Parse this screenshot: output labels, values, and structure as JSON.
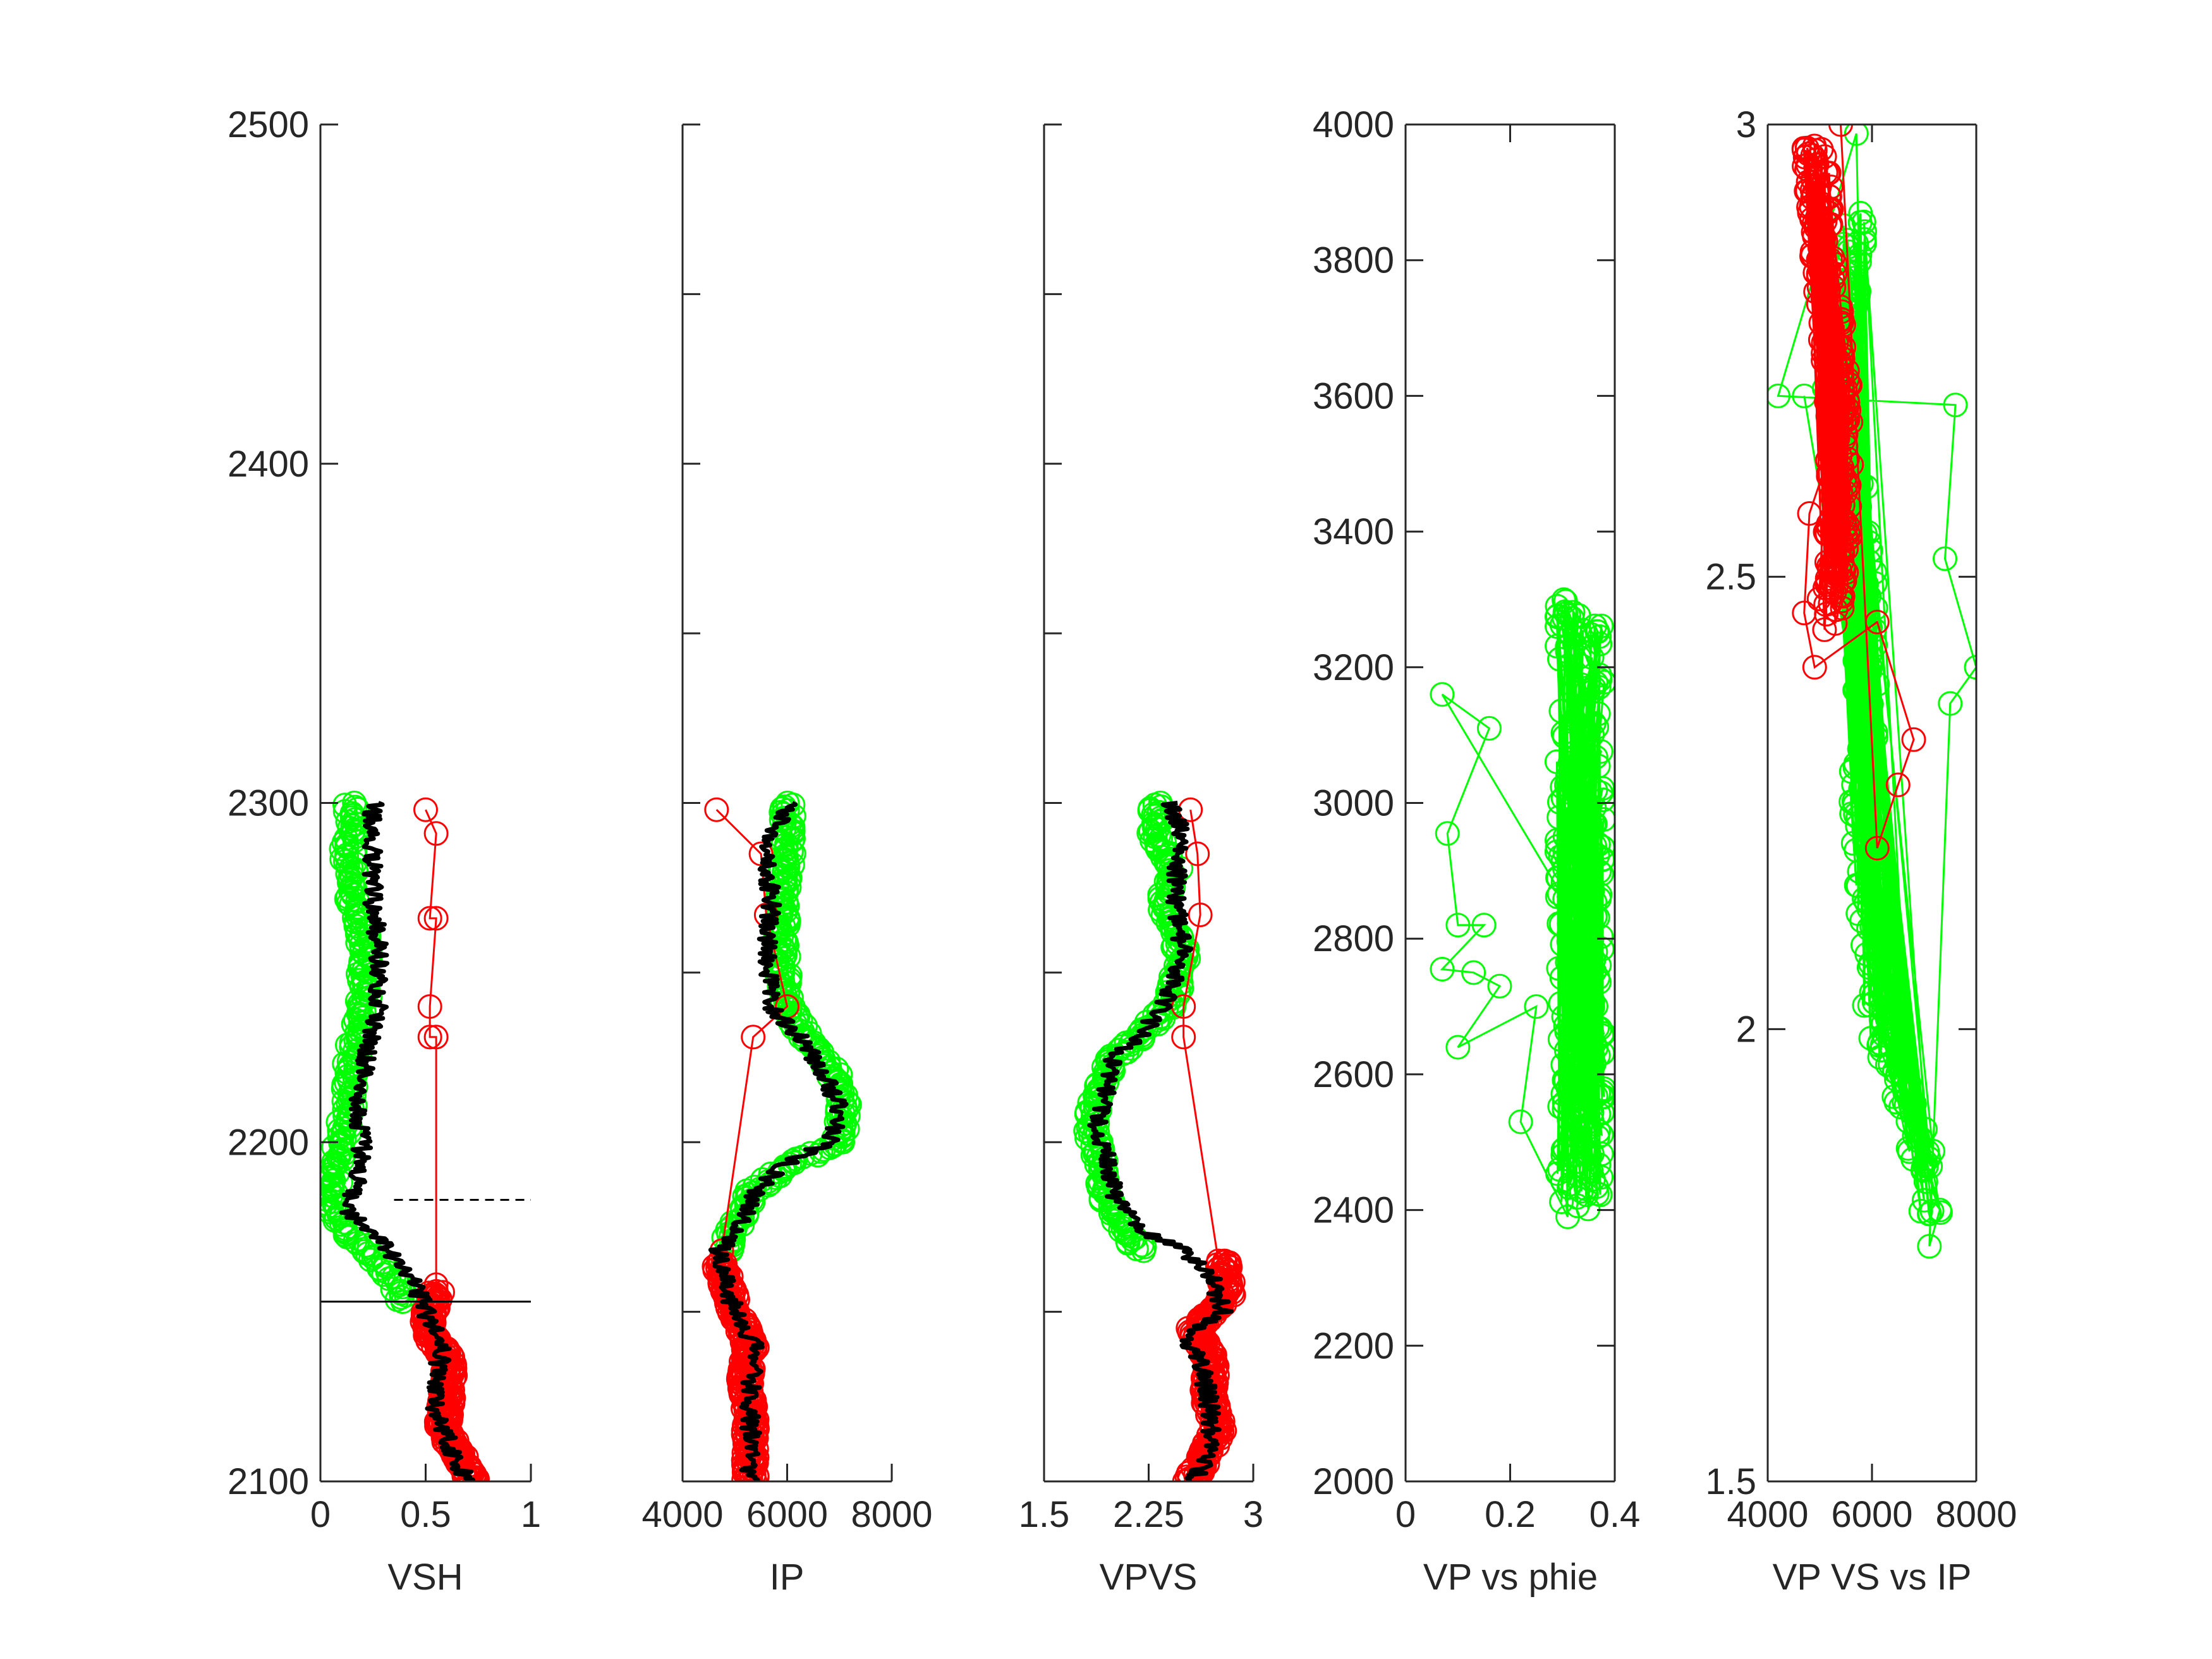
{
  "figure": {
    "background": "#ffffff",
    "axis_color": "#262626",
    "colors": {
      "sand": "#00ff00",
      "shale": "#ff0000",
      "log": "#000000"
    }
  },
  "chart_data": [
    {
      "id": "vsh",
      "type": "scatter",
      "xlabel": "VSH",
      "ylabel": "",
      "xlim": [
        0,
        1
      ],
      "ylim": [
        2100,
        2500
      ],
      "y_reversed": false,
      "xticks": [
        0,
        0.5,
        1
      ],
      "xtick_labels": [
        "0",
        "0.5",
        "1"
      ],
      "yticks": [
        2100,
        2200,
        2300,
        2400,
        2500
      ],
      "ytick_labels": [
        "2100",
        "2200",
        "2300",
        "2400",
        "2500"
      ],
      "reference_lines": [
        {
          "y": 2183,
          "x0": 0.35,
          "x1": 1,
          "style": "dashed"
        },
        {
          "y": 2153,
          "x0": 0,
          "x1": 1,
          "style": "solid"
        }
      ],
      "series": [
        {
          "color": "#00ff00",
          "marker": "circle",
          "line": false,
          "y_range": [
            2153,
            2300
          ],
          "profile": [
            [
              2300,
              0.15
            ],
            [
              2285,
              0.13
            ],
            [
              2270,
              0.16
            ],
            [
              2255,
              0.22
            ],
            [
              2240,
              0.2
            ],
            [
              2225,
              0.15
            ],
            [
              2210,
              0.13
            ],
            [
              2200,
              0.1
            ],
            [
              2190,
              0.07
            ],
            [
              2180,
              0.05
            ],
            [
              2172,
              0.15
            ],
            [
              2165,
              0.27
            ],
            [
              2158,
              0.36
            ],
            [
              2153,
              0.38
            ]
          ]
        },
        {
          "color": "#ff0000",
          "marker": "circle",
          "line": false,
          "y_range": [
            2100,
            2156
          ],
          "profile": [
            [
              2156,
              0.55
            ],
            [
              2145,
              0.5
            ],
            [
              2135,
              0.62
            ],
            [
              2125,
              0.6
            ],
            [
              2115,
              0.58
            ],
            [
              2108,
              0.66
            ],
            [
              2100,
              0.72
            ]
          ]
        },
        {
          "color": "#ff0000",
          "marker": "circle",
          "line": true,
          "points": [
            [
              0.5,
              2298
            ],
            [
              0.55,
              2291
            ],
            [
              0.52,
              2266
            ],
            [
              0.55,
              2266
            ],
            [
              0.52,
              2240
            ],
            [
              0.52,
              2231
            ],
            [
              0.55,
              2231
            ],
            [
              0.55,
              2158
            ]
          ]
        },
        {
          "color": "#000000",
          "marker": "none",
          "line": "log",
          "y_range": [
            2100,
            2300
          ],
          "profile": [
            [
              2300,
              0.25
            ],
            [
              2285,
              0.25
            ],
            [
              2270,
              0.25
            ],
            [
              2255,
              0.28
            ],
            [
              2240,
              0.28
            ],
            [
              2225,
              0.22
            ],
            [
              2210,
              0.18
            ],
            [
              2200,
              0.2
            ],
            [
              2190,
              0.18
            ],
            [
              2180,
              0.12
            ],
            [
              2172,
              0.28
            ],
            [
              2165,
              0.35
            ],
            [
              2158,
              0.45
            ],
            [
              2150,
              0.5
            ],
            [
              2140,
              0.58
            ],
            [
              2130,
              0.55
            ],
            [
              2120,
              0.55
            ],
            [
              2110,
              0.62
            ],
            [
              2100,
              0.7
            ]
          ]
        }
      ]
    },
    {
      "id": "ip",
      "type": "scatter",
      "xlabel": "IP",
      "ylabel": "",
      "xlim": [
        4000,
        8000
      ],
      "ylim": [
        2100,
        2500
      ],
      "y_reversed": false,
      "xticks": [
        4000,
        6000,
        8000
      ],
      "xtick_labels": [
        "4000",
        "6000",
        "8000"
      ],
      "yticks": [
        2100,
        2150,
        2200,
        2250,
        2300,
        2350,
        2400,
        2450,
        2500
      ],
      "ytick_labels": [],
      "series": [
        {
          "color": "#00ff00",
          "marker": "circle",
          "line": false,
          "y_range": [
            2168,
            2300
          ],
          "profile": [
            [
              2300,
              6000
            ],
            [
              2285,
              6000
            ],
            [
              2270,
              5900
            ],
            [
              2255,
              5900
            ],
            [
              2240,
              6000
            ],
            [
              2230,
              6400
            ],
            [
              2220,
              6900
            ],
            [
              2210,
              7100
            ],
            [
              2200,
              7000
            ],
            [
              2193,
              6000
            ],
            [
              2185,
              5300
            ],
            [
              2175,
              5000
            ],
            [
              2168,
              4800
            ]
          ]
        },
        {
          "color": "#ff0000",
          "marker": "circle",
          "line": false,
          "y_range": [
            2100,
            2165
          ],
          "profile": [
            [
              2165,
              4700
            ],
            [
              2150,
              5000
            ],
            [
              2140,
              5300
            ],
            [
              2130,
              5200
            ],
            [
              2120,
              5300
            ],
            [
              2110,
              5300
            ],
            [
              2100,
              5300
            ]
          ]
        },
        {
          "color": "#ff0000",
          "marker": "circle",
          "line": true,
          "points": [
            [
              4650,
              2298
            ],
            [
              5500,
              2285
            ],
            [
              5600,
              2267
            ],
            [
              6000,
              2240
            ],
            [
              5350,
              2231
            ],
            [
              4750,
              2168
            ]
          ]
        },
        {
          "color": "#000000",
          "marker": "none",
          "line": "log",
          "y_range": [
            2100,
            2300
          ],
          "profile": [
            [
              2300,
              6000
            ],
            [
              2285,
              5600
            ],
            [
              2270,
              5700
            ],
            [
              2255,
              5600
            ],
            [
              2240,
              5700
            ],
            [
              2230,
              6300
            ],
            [
              2220,
              6700
            ],
            [
              2210,
              7000
            ],
            [
              2200,
              6800
            ],
            [
              2193,
              5900
            ],
            [
              2185,
              5400
            ],
            [
              2175,
              5100
            ],
            [
              2168,
              4700
            ],
            [
              2160,
              4800
            ],
            [
              2150,
              5000
            ],
            [
              2140,
              5400
            ],
            [
              2130,
              5300
            ],
            [
              2120,
              5300
            ],
            [
              2110,
              5300
            ],
            [
              2100,
              5300
            ]
          ]
        }
      ]
    },
    {
      "id": "vpvs",
      "type": "scatter",
      "xlabel": "VPVS",
      "ylabel": "",
      "xlim": [
        1.5,
        3
      ],
      "ylim": [
        2100,
        2500
      ],
      "y_reversed": false,
      "xticks": [
        1.5,
        2.25,
        3
      ],
      "xtick_labels": [
        "1.5",
        "2.25",
        "3"
      ],
      "yticks": [
        2100,
        2150,
        2200,
        2250,
        2300,
        2350,
        2400,
        2450,
        2500
      ],
      "ytick_labels": [],
      "series": [
        {
          "color": "#00ff00",
          "marker": "circle",
          "line": false,
          "y_range": [
            2168,
            2300
          ],
          "profile": [
            [
              2300,
              2.3
            ],
            [
              2290,
              2.3
            ],
            [
              2280,
              2.45
            ],
            [
              2270,
              2.35
            ],
            [
              2255,
              2.5
            ],
            [
              2240,
              2.4
            ],
            [
              2232,
              2.2
            ],
            [
              2225,
              2.0
            ],
            [
              2215,
              1.9
            ],
            [
              2205,
              1.83
            ],
            [
              2195,
              1.9
            ],
            [
              2185,
              1.93
            ],
            [
              2175,
              2.05
            ],
            [
              2168,
              2.2
            ]
          ]
        },
        {
          "color": "#ff0000",
          "marker": "circle",
          "line": false,
          "y_range": [
            2100,
            2165
          ],
          "profile": [
            [
              2165,
              2.78
            ],
            [
              2155,
              2.82
            ],
            [
              2145,
              2.58
            ],
            [
              2135,
              2.7
            ],
            [
              2125,
              2.68
            ],
            [
              2115,
              2.75
            ],
            [
              2105,
              2.62
            ],
            [
              2100,
              2.55
            ]
          ]
        },
        {
          "color": "#ff0000",
          "marker": "circle",
          "line": true,
          "points": [
            [
              2.55,
              2298
            ],
            [
              2.6,
              2285
            ],
            [
              2.62,
              2267
            ],
            [
              2.5,
              2240
            ],
            [
              2.5,
              2231
            ],
            [
              2.75,
              2165
            ]
          ]
        },
        {
          "color": "#000000",
          "marker": "none",
          "line": "log",
          "y_range": [
            2100,
            2300
          ],
          "profile": [
            [
              2300,
              2.4
            ],
            [
              2290,
              2.5
            ],
            [
              2280,
              2.45
            ],
            [
              2270,
              2.45
            ],
            [
              2255,
              2.5
            ],
            [
              2240,
              2.35
            ],
            [
              2232,
              2.2
            ],
            [
              2225,
              2.0
            ],
            [
              2215,
              1.95
            ],
            [
              2205,
              1.88
            ],
            [
              2195,
              1.95
            ],
            [
              2185,
              2.0
            ],
            [
              2175,
              2.15
            ],
            [
              2168,
              2.5
            ],
            [
              2160,
              2.7
            ],
            [
              2150,
              2.78
            ],
            [
              2143,
              2.5
            ],
            [
              2135,
              2.62
            ],
            [
              2125,
              2.68
            ],
            [
              2115,
              2.7
            ],
            [
              2105,
              2.65
            ],
            [
              2100,
              2.55
            ]
          ]
        }
      ]
    },
    {
      "id": "vp_phie",
      "type": "scatter",
      "xlabel": "VP vs phie",
      "ylabel": "",
      "xlim": [
        0,
        0.4
      ],
      "ylim": [
        2000,
        4000
      ],
      "y_reversed": false,
      "xticks": [
        0,
        0.2,
        0.4
      ],
      "xtick_labels": [
        "0",
        "0.2",
        "0.4"
      ],
      "yticks": [
        2000,
        2200,
        2400,
        2600,
        2800,
        3000,
        3200,
        3400,
        3600,
        3800,
        4000
      ],
      "ytick_labels": [
        "2000",
        "2200",
        "2400",
        "2600",
        "2800",
        "3000",
        "3200",
        "3400",
        "3600",
        "3800",
        "4000"
      ],
      "series": [
        {
          "color": "#00ff00",
          "marker": "circle",
          "line": true,
          "cloud": {
            "x_range": [
              0.25,
              0.38
            ],
            "y_range": [
              2400,
              3300
            ]
          },
          "outliers": [
            [
              0.07,
              3160
            ],
            [
              0.16,
              3110
            ],
            [
              0.08,
              2955
            ],
            [
              0.1,
              2820
            ],
            [
              0.15,
              2820
            ],
            [
              0.07,
              2755
            ],
            [
              0.13,
              2750
            ],
            [
              0.18,
              2730
            ],
            [
              0.1,
              2640
            ],
            [
              0.25,
              2700
            ],
            [
              0.22,
              2530
            ],
            [
              0.31,
              2390
            ],
            [
              0.29,
              3290
            ]
          ]
        }
      ]
    },
    {
      "id": "vpvs_ip",
      "type": "scatter",
      "xlabel": "VP VS vs IP",
      "ylabel": "",
      "xlim": [
        4000,
        8000
      ],
      "ylim": [
        1.5,
        3
      ],
      "y_reversed": false,
      "xticks": [
        4000,
        6000,
        8000
      ],
      "xtick_labels": [
        "4000",
        "6000",
        "8000"
      ],
      "yticks": [
        1.5,
        2,
        2.5,
        3
      ],
      "ytick_labels": [
        "1.5",
        "2",
        "2.5",
        "3"
      ],
      "series": [
        {
          "color": "#00ff00",
          "marker": "circle",
          "line": true,
          "profile": [
            [
              2.9,
              5700
            ],
            [
              2.7,
              5300
            ],
            [
              2.55,
              5800
            ],
            [
              2.4,
              5900
            ],
            [
              2.25,
              5800
            ],
            [
              2.1,
              6000
            ],
            [
              2.0,
              6100
            ],
            [
              1.95,
              6500
            ],
            [
              1.85,
              7000
            ],
            [
              1.8,
              7100
            ]
          ],
          "outliers": [
            [
              5700,
              2.99
            ],
            [
              4200,
              2.7
            ],
            [
              7600,
              2.69
            ],
            [
              7400,
              2.52
            ],
            [
              8000,
              2.4
            ],
            [
              7500,
              2.36
            ],
            [
              7100,
              1.76
            ],
            [
              7300,
              1.8
            ],
            [
              4700,
              2.7
            ]
          ]
        },
        {
          "color": "#ff0000",
          "marker": "circle",
          "line": true,
          "profile": [
            [
              2.98,
              4900
            ],
            [
              2.9,
              5000
            ],
            [
              2.8,
              5200
            ],
            [
              2.7,
              5350
            ],
            [
              2.6,
              5400
            ],
            [
              2.5,
              5300
            ],
            [
              2.45,
              5200
            ]
          ],
          "outliers": [
            [
              4800,
              2.57
            ],
            [
              4700,
              2.46
            ],
            [
              4900,
              2.4
            ],
            [
              6100,
              2.45
            ],
            [
              6800,
              2.32
            ],
            [
              6500,
              2.27
            ],
            [
              6100,
              2.2
            ],
            [
              5400,
              3.0
            ]
          ]
        }
      ]
    }
  ]
}
